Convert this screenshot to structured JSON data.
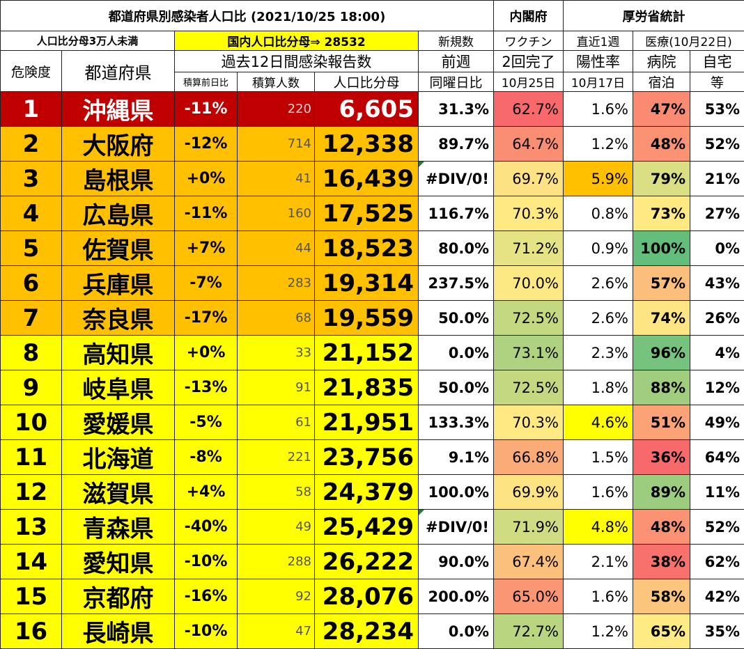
{
  "header": {
    "title": "都道府県別感染者人口比 (2021/10/25 18:00)",
    "cabinet": "内閣府",
    "mhlw": "厚労省統計",
    "filter": "人口比分母3万人未満",
    "national": "国内人口比分母⇒ 28532",
    "new_cases": "新規数",
    "vaccine": "ワクチン",
    "recent_week": "直近1週",
    "medical": "医療(10月22日)",
    "risk": "危険度",
    "prefecture": "都道府県",
    "past12": "過去12日間感染報告数",
    "prev_week": "前週",
    "vaccine2": "2回完了",
    "positivity": "陽性率",
    "hospital": "病院",
    "home": "自宅",
    "cum_change": "積算前日比",
    "cum_count": "積算人数",
    "ratio": "人口比分母",
    "same_day": "同曜日比",
    "vac_date": "10月25日",
    "pos_date": "10月17日",
    "hotel": "宿泊",
    "etc": "等"
  },
  "rows": [
    {
      "rank": "1",
      "pref": "沖縄県",
      "chg": "-11%",
      "cum": "220",
      "ratio": "6,605",
      "wk": "31.3%",
      "vac": "62.7%",
      "pos": "1.6%",
      "hosp": "47%",
      "home": "53%"
    },
    {
      "rank": "2",
      "pref": "大阪府",
      "chg": "-12%",
      "cum": "714",
      "ratio": "12,338",
      "wk": "89.7%",
      "vac": "64.7%",
      "pos": "1.2%",
      "hosp": "48%",
      "home": "52%"
    },
    {
      "rank": "3",
      "pref": "島根県",
      "chg": "+0%",
      "cum": "41",
      "ratio": "16,439",
      "wk": "#DIV/0!",
      "vac": "69.7%",
      "pos": "5.9%",
      "hosp": "79%",
      "home": "21%"
    },
    {
      "rank": "4",
      "pref": "広島県",
      "chg": "-11%",
      "cum": "160",
      "ratio": "17,525",
      "wk": "116.7%",
      "vac": "70.3%",
      "pos": "0.8%",
      "hosp": "73%",
      "home": "27%"
    },
    {
      "rank": "5",
      "pref": "佐賀県",
      "chg": "+7%",
      "cum": "44",
      "ratio": "18,523",
      "wk": "80.0%",
      "vac": "71.2%",
      "pos": "0.9%",
      "hosp": "100%",
      "home": "0%"
    },
    {
      "rank": "6",
      "pref": "兵庫県",
      "chg": "-7%",
      "cum": "283",
      "ratio": "19,314",
      "wk": "237.5%",
      "vac": "70.0%",
      "pos": "2.6%",
      "hosp": "57%",
      "home": "43%"
    },
    {
      "rank": "7",
      "pref": "奈良県",
      "chg": "-17%",
      "cum": "68",
      "ratio": "19,559",
      "wk": "50.0%",
      "vac": "72.5%",
      "pos": "2.6%",
      "hosp": "74%",
      "home": "26%"
    },
    {
      "rank": "8",
      "pref": "高知県",
      "chg": "+0%",
      "cum": "33",
      "ratio": "21,152",
      "wk": "0.0%",
      "vac": "73.1%",
      "pos": "2.3%",
      "hosp": "96%",
      "home": "4%"
    },
    {
      "rank": "9",
      "pref": "岐阜県",
      "chg": "-13%",
      "cum": "91",
      "ratio": "21,835",
      "wk": "50.0%",
      "vac": "72.5%",
      "pos": "1.8%",
      "hosp": "88%",
      "home": "12%"
    },
    {
      "rank": "10",
      "pref": "愛媛県",
      "chg": "-5%",
      "cum": "61",
      "ratio": "21,951",
      "wk": "133.3%",
      "vac": "70.3%",
      "pos": "4.6%",
      "hosp": "51%",
      "home": "49%"
    },
    {
      "rank": "11",
      "pref": "北海道",
      "chg": "-8%",
      "cum": "221",
      "ratio": "23,756",
      "wk": "9.1%",
      "vac": "66.8%",
      "pos": "1.5%",
      "hosp": "36%",
      "home": "64%"
    },
    {
      "rank": "12",
      "pref": "滋賀県",
      "chg": "+4%",
      "cum": "58",
      "ratio": "24,379",
      "wk": "100.0%",
      "vac": "69.9%",
      "pos": "1.6%",
      "hosp": "89%",
      "home": "11%"
    },
    {
      "rank": "13",
      "pref": "青森県",
      "chg": "-40%",
      "cum": "49",
      "ratio": "25,429",
      "wk": "#DIV/0!",
      "vac": "71.9%",
      "pos": "4.8%",
      "hosp": "48%",
      "home": "52%"
    },
    {
      "rank": "14",
      "pref": "愛知県",
      "chg": "-10%",
      "cum": "288",
      "ratio": "26,222",
      "wk": "90.0%",
      "vac": "67.4%",
      "pos": "2.1%",
      "hosp": "38%",
      "home": "62%"
    },
    {
      "rank": "15",
      "pref": "京都府",
      "chg": "-16%",
      "cum": "92",
      "ratio": "28,076",
      "wk": "200.0%",
      "vac": "65.0%",
      "pos": "1.6%",
      "hosp": "58%",
      "home": "42%"
    },
    {
      "rank": "16",
      "pref": "長崎県",
      "chg": "-10%",
      "cum": "47",
      "ratio": "28,234",
      "wk": "0.0%",
      "vac": "72.7%",
      "pos": "1.2%",
      "hosp": "65%",
      "home": "35%"
    }
  ],
  "row_styles": [
    {
      "bg": "#c00000",
      "fg": "#ffffff"
    },
    {
      "bg": "#ffc000",
      "fg": "#000000"
    },
    {
      "bg": "#ffc000",
      "fg": "#000000"
    },
    {
      "bg": "#ffc000",
      "fg": "#000000"
    },
    {
      "bg": "#ffc000",
      "fg": "#000000"
    },
    {
      "bg": "#ffc000",
      "fg": "#000000"
    },
    {
      "bg": "#ffc000",
      "fg": "#000000"
    },
    {
      "bg": "#ffff00",
      "fg": "#000000"
    },
    {
      "bg": "#ffff00",
      "fg": "#000000"
    },
    {
      "bg": "#ffff00",
      "fg": "#000000"
    },
    {
      "bg": "#ffff00",
      "fg": "#000000"
    },
    {
      "bg": "#ffff00",
      "fg": "#000000"
    },
    {
      "bg": "#ffff00",
      "fg": "#000000"
    },
    {
      "bg": "#ffff00",
      "fg": "#000000"
    },
    {
      "bg": "#ffff00",
      "fg": "#000000"
    },
    {
      "bg": "#ffff00",
      "fg": "#000000"
    }
  ],
  "vac_colors": [
    "#f8696b",
    "#fa8e72",
    "#fde283",
    "#fee983",
    "#e5e383",
    "#fde983",
    "#c4d880",
    "#aed27f",
    "#c4d880",
    "#fee983",
    "#fbab77",
    "#fee383",
    "#cfdc81",
    "#fbc07b",
    "#fa9673",
    "#b9d57f"
  ],
  "pos_colors": [
    "#ffffff",
    "#ffffff",
    "#ffc000",
    "#ffffff",
    "#ffffff",
    "#ffffff",
    "#ffffff",
    "#ffffff",
    "#ffffff",
    "#ffff00",
    "#ffffff",
    "#ffffff",
    "#ffff00",
    "#ffffff",
    "#ffffff",
    "#ffffff"
  ],
  "hosp_colors": [
    "#fa8b72",
    "#fa9273",
    "#d9df82",
    "#fee983",
    "#63be7b",
    "#fcbe7b",
    "#fee583",
    "#75c37c",
    "#a1ce7e",
    "#fba376",
    "#f8696b",
    "#9ccd7e",
    "#fa9273",
    "#f8716c",
    "#fcc57d",
    "#ffeb84"
  ],
  "tri_rows": [
    2,
    12
  ]
}
